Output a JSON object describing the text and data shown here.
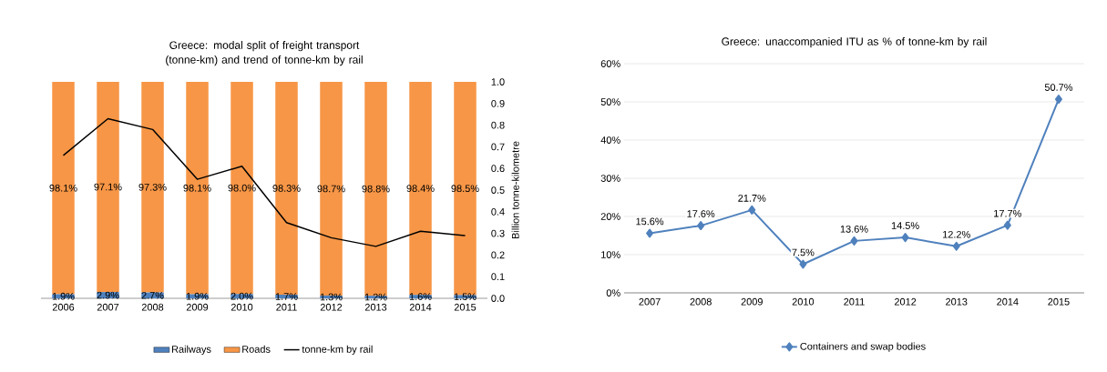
{
  "chart_data": [
    {
      "type": "bar",
      "title": "Greece: modal split of freight transport (tonne-km) and trend of tonne-km by rail",
      "categories": [
        "2006",
        "2007",
        "2008",
        "2009",
        "2010",
        "2011",
        "2012",
        "2013",
        "2014",
        "2015"
      ],
      "stacked": true,
      "ylim": [
        0,
        100
      ],
      "tick_labels": "x",
      "y2label": "Billion tonne-kilometre",
      "y2lim": [
        0,
        1.0
      ],
      "y2ticks": [
        {
          "value": 0,
          "label": "0.0"
        },
        {
          "value": 0.1,
          "label": "0.1"
        },
        {
          "value": 0.2,
          "label": "0.2"
        },
        {
          "value": 0.3,
          "label": "0.3"
        },
        {
          "value": 0.4,
          "label": "0.4"
        },
        {
          "value": 0.5,
          "label": "0.5"
        },
        {
          "value": 0.6,
          "label": "0.6"
        },
        {
          "value": 0.7,
          "label": "0.7"
        },
        {
          "value": 0.8,
          "label": "0.8"
        },
        {
          "value": 0.9,
          "label": "0.9"
        },
        {
          "value": 1.0,
          "label": "1.0"
        }
      ],
      "legend": "bottom",
      "series": [
        {
          "name": "Railways",
          "color": "#4f81bd",
          "values": [
            1.9,
            2.9,
            2.7,
            1.9,
            2.0,
            1.7,
            1.3,
            1.2,
            1.6,
            1.5
          ],
          "value_labels": [
            "1.9%",
            "2.9%",
            "2.7%",
            "1.9%",
            "2.0%",
            "1.7%",
            "1.3%",
            "1.2%",
            "1.6%",
            "1.5%"
          ]
        },
        {
          "name": "Roads",
          "color": "#f79646",
          "values": [
            98.1,
            97.1,
            97.3,
            98.1,
            98.0,
            98.3,
            98.7,
            98.8,
            98.4,
            98.5
          ],
          "value_labels": [
            "98.1%",
            "97.1%",
            "97.3%",
            "98.1%",
            "98.0%",
            "98.3%",
            "98.7%",
            "98.8%",
            "98.4%",
            "98.5%"
          ]
        },
        {
          "name": "tonne-km by rail",
          "type": "line",
          "axis": "y2",
          "color": "#000000",
          "values": [
            0.66,
            0.83,
            0.78,
            0.55,
            0.61,
            0.35,
            0.28,
            0.24,
            0.31,
            0.29
          ]
        }
      ]
    },
    {
      "type": "line",
      "title": "Greece: unaccompanied ITU as % of tonne-km by rail",
      "categories": [
        "2007",
        "2008",
        "2009",
        "2010",
        "2011",
        "2012",
        "2013",
        "2014",
        "2015"
      ],
      "ylim": [
        0,
        60
      ],
      "yticks": [
        {
          "value": 0,
          "label": "0%"
        },
        {
          "value": 10,
          "label": "10%"
        },
        {
          "value": 20,
          "label": "20%"
        },
        {
          "value": 30,
          "label": "30%"
        },
        {
          "value": 40,
          "label": "40%"
        },
        {
          "value": 50,
          "label": "50%"
        },
        {
          "value": 60,
          "label": "60%"
        }
      ],
      "grid": "y",
      "legend": "bottom",
      "marker": "diamond",
      "series": [
        {
          "name": "Containers and swap bodies",
          "color": "#4f81bd",
          "values": [
            15.6,
            17.6,
            21.7,
            7.5,
            13.6,
            14.5,
            12.2,
            17.7,
            50.7
          ],
          "value_labels": [
            "15.6%",
            "17.6%",
            "21.7%",
            "7.5%",
            "13.6%",
            "14.5%",
            "12.2%",
            "17.7%",
            "50.7%"
          ]
        }
      ]
    }
  ]
}
